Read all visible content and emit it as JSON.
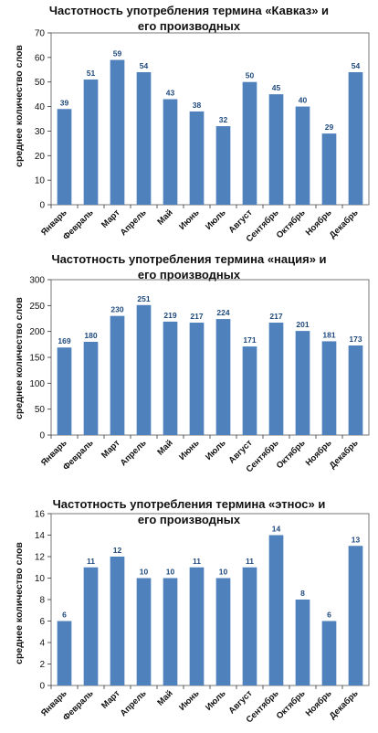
{
  "colors": {
    "bar": "#4f81bd",
    "label": "#1f497d",
    "axis": "#333333",
    "border": "#555555"
  },
  "chart_data": [
    {
      "type": "bar",
      "title_lines": [
        "Частотность употребления термина «Кавказ» и",
        "его производных"
      ],
      "ylabel": "среднее количество слов",
      "xlabel": "",
      "categories": [
        "Январь",
        "Февраль",
        "Март",
        "Апрель",
        "Май",
        "Июнь",
        "Июль",
        "Август",
        "Сентябрь",
        "Октябрь",
        "Ноябрь",
        "Декабрь"
      ],
      "values": [
        39,
        51,
        59,
        54,
        43,
        38,
        32,
        50,
        45,
        40,
        29,
        54
      ],
      "ylim": [
        0,
        70
      ],
      "yticks": [
        0,
        10,
        20,
        30,
        40,
        50,
        60,
        70
      ],
      "grid": false
    },
    {
      "type": "bar",
      "title_lines": [
        "Частотность употребления термина «нация» и",
        "его производных"
      ],
      "ylabel": "среднее количество слов",
      "xlabel": "",
      "categories": [
        "Январь",
        "Февраль",
        "Март",
        "Апрель",
        "Май",
        "Июнь",
        "Июль",
        "Август",
        "Сентябрь",
        "Октябрь",
        "Ноябрь",
        "Декабрь"
      ],
      "values": [
        169,
        180,
        230,
        251,
        219,
        217,
        224,
        171,
        217,
        201,
        181,
        173
      ],
      "ylim": [
        0,
        300
      ],
      "yticks": [
        0,
        50,
        100,
        150,
        200,
        250,
        300
      ],
      "grid": false
    },
    {
      "type": "bar",
      "title_lines": [
        "Частотность употребления термина «этнос» и",
        "его производных"
      ],
      "ylabel": "среднее количество слов",
      "xlabel": "",
      "categories": [
        "Январь",
        "Февраль",
        "Март",
        "Апрель",
        "Май",
        "Июнь",
        "Июль",
        "Август",
        "Сентябрь",
        "Октябрь",
        "Ноябрь",
        "Декабрь"
      ],
      "values": [
        6,
        11,
        12,
        10,
        10,
        11,
        10,
        11,
        14,
        8,
        6,
        13
      ],
      "ylim": [
        0,
        16
      ],
      "yticks": [
        0,
        2,
        4,
        6,
        8,
        10,
        12,
        14,
        16
      ],
      "grid": false
    }
  ]
}
